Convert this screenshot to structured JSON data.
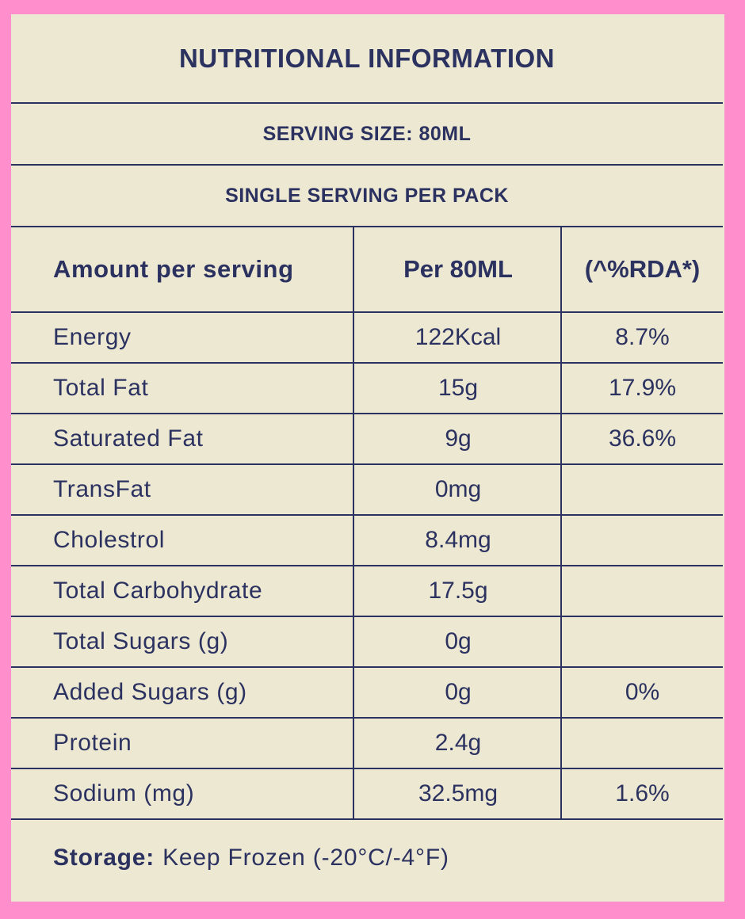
{
  "title": "NUTRITIONAL INFORMATION",
  "serving_size": "SERVING SIZE: 80ML",
  "servings_per_pack": "SINGLE SERVING PER PACK",
  "table": {
    "headers": [
      "Amount per serving",
      "Per 80ML",
      "(^%RDA*)"
    ],
    "rows": [
      {
        "name": "Energy",
        "amount": "122Kcal",
        "rda": "8.7%"
      },
      {
        "name": "Total Fat",
        "amount": "15g",
        "rda": "17.9%"
      },
      {
        "name": "Saturated Fat",
        "amount": "9g",
        "rda": "36.6%"
      },
      {
        "name": "TransFat",
        "amount": "0mg",
        "rda": ""
      },
      {
        "name": "Cholestrol",
        "amount": "8.4mg",
        "rda": ""
      },
      {
        "name": "Total Carbohydrate",
        "amount": "17.5g",
        "rda": ""
      },
      {
        "name": "Total Sugars (g)",
        "amount": "0g",
        "rda": ""
      },
      {
        "name": "Added Sugars (g)",
        "amount": "0g",
        "rda": "0%"
      },
      {
        "name": "Protein",
        "amount": "2.4g",
        "rda": ""
      },
      {
        "name": "Sodium (mg)",
        "amount": "32.5mg",
        "rda": "1.6%"
      }
    ]
  },
  "storage": {
    "label": "Storage:",
    "value": "Keep Frozen (-20°C/-4°F)"
  },
  "colors": {
    "border": "#ff8fcc",
    "panel": "#ede8d2",
    "ink": "#2c3260"
  }
}
